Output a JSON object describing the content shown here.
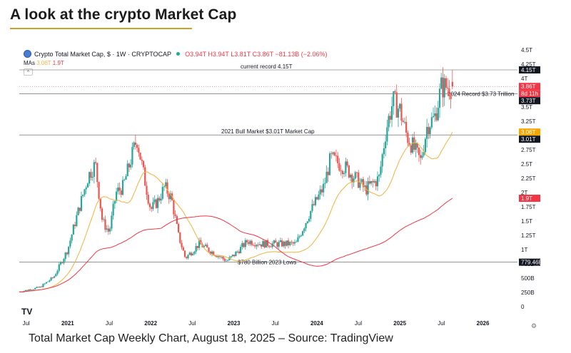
{
  "page": {
    "title": "A look at the crypto Market Cap",
    "caption": "Total Market Cap Weekly Chart, August 18, 2025 – Source: TradingView"
  },
  "legend": {
    "symbol": "Crypto Total Market Cap, $ · 1W · CRYPTOCAP",
    "ohlc": "O3.94T H3.94T L3.81T C3.86T −81.13B (−2.06%)",
    "mas_label": "MAs",
    "ma1_value": "3.06T",
    "ma2_value": "1.9T",
    "collapse": "˄"
  },
  "icons": {
    "logo": "TV",
    "settings": "gear-icon",
    "settings_glyph": "⚙"
  },
  "colors": {
    "up": "#26a69a",
    "down": "#ef5350",
    "ma_short": "#f2b23c",
    "ma_long": "#f23645",
    "ref_line": "#555555",
    "last_price": "#f23645"
  },
  "chart_data": {
    "type": "candlestick",
    "title": "Crypto Total Market Cap, $ · 1W · CRYPTOCAP",
    "x_tick_labels": [
      "Jul",
      "2021",
      "Jul",
      "2022",
      "Jul",
      "2023",
      "Jul",
      "2024",
      "Jul",
      "2025",
      "Jul",
      "2026"
    ],
    "y_tick_labels": [
      "0",
      "250B",
      "500B",
      "750B",
      "1T",
      "1.25T",
      "1.5T",
      "1.75T",
      "2T",
      "2.25T",
      "2.5T",
      "2.75T",
      "3T",
      "3.25T",
      "3.5T",
      "3.75T",
      "4T",
      "4.25T",
      "4.5T"
    ],
    "ylim": [
      0,
      4.5
    ],
    "y_unit": "trillion USD",
    "price_path": [
      [
        "2020-06",
        0.26
      ],
      [
        "2020-09",
        0.34
      ],
      [
        "2020-11",
        0.52
      ],
      [
        "2021-01",
        1.0
      ],
      [
        "2021-02",
        1.45
      ],
      [
        "2021-04",
        2.3
      ],
      [
        "2021-05",
        2.5
      ],
      [
        "2021-06",
        1.5
      ],
      [
        "2021-07",
        1.3
      ],
      [
        "2021-08",
        2.0
      ],
      [
        "2021-09",
        2.1
      ],
      [
        "2021-11",
        2.95
      ],
      [
        "2021-12",
        2.3
      ],
      [
        "2022-01",
        1.7
      ],
      [
        "2022-02",
        1.85
      ],
      [
        "2022-03",
        2.1
      ],
      [
        "2022-04",
        1.9
      ],
      [
        "2022-05",
        1.25
      ],
      [
        "2022-06",
        0.85
      ],
      [
        "2022-08",
        1.1
      ],
      [
        "2022-10",
        0.95
      ],
      [
        "2022-12",
        0.8
      ],
      [
        "2023-01",
        0.9
      ],
      [
        "2023-03",
        1.15
      ],
      [
        "2023-05",
        1.1
      ],
      [
        "2023-08",
        1.1
      ],
      [
        "2023-10",
        1.1
      ],
      [
        "2023-12",
        1.65
      ],
      [
        "2024-02",
        2.1
      ],
      [
        "2024-03",
        2.6
      ],
      [
        "2024-05",
        2.45
      ],
      [
        "2024-07",
        2.2
      ],
      [
        "2024-08",
        2.05
      ],
      [
        "2024-10",
        2.25
      ],
      [
        "2024-11",
        3.1
      ],
      [
        "2024-12",
        3.6
      ],
      [
        "2025-01",
        3.45
      ],
      [
        "2025-02",
        3.0
      ],
      [
        "2025-04",
        2.55
      ],
      [
        "2025-05",
        3.2
      ],
      [
        "2025-06",
        3.3
      ],
      [
        "2025-07",
        3.85
      ],
      [
        "2025-08",
        3.86
      ]
    ],
    "series": [
      {
        "name": "MA (short)",
        "values_at_end": 3.06
      },
      {
        "name": "MA (long)",
        "values_at_end": 1.9
      }
    ],
    "reference_lines": [
      {
        "label": "current record 4.15T",
        "value": 4.15
      },
      {
        "label": "2024 Record $3.73 Trillion",
        "value": 3.73
      },
      {
        "label": "2021 Bull Market $3.01T Market Cap",
        "value": 3.01
      },
      {
        "label": "$780 Billion 2023 Lows",
        "value": 0.77946
      }
    ],
    "axis_badges": [
      {
        "text": "4.15T",
        "kind": "dark",
        "value": 4.15
      },
      {
        "text": "3.86T",
        "kind": "red",
        "value": 3.86
      },
      {
        "text": "8d 11h",
        "kind": "red-sub",
        "value": 3.86
      },
      {
        "text": "3.73T",
        "kind": "dark",
        "value": 3.73
      },
      {
        "text": "3.06T",
        "kind": "orange",
        "value": 3.06
      },
      {
        "text": "3.01T",
        "kind": "dark",
        "value": 3.01
      },
      {
        "text": "1.9T",
        "kind": "red",
        "value": 1.9
      },
      {
        "text": "779.46B",
        "kind": "dark",
        "value": 0.77946
      }
    ],
    "last": {
      "open": 3.94,
      "high": 3.94,
      "low": 3.81,
      "close": 3.86
    }
  }
}
